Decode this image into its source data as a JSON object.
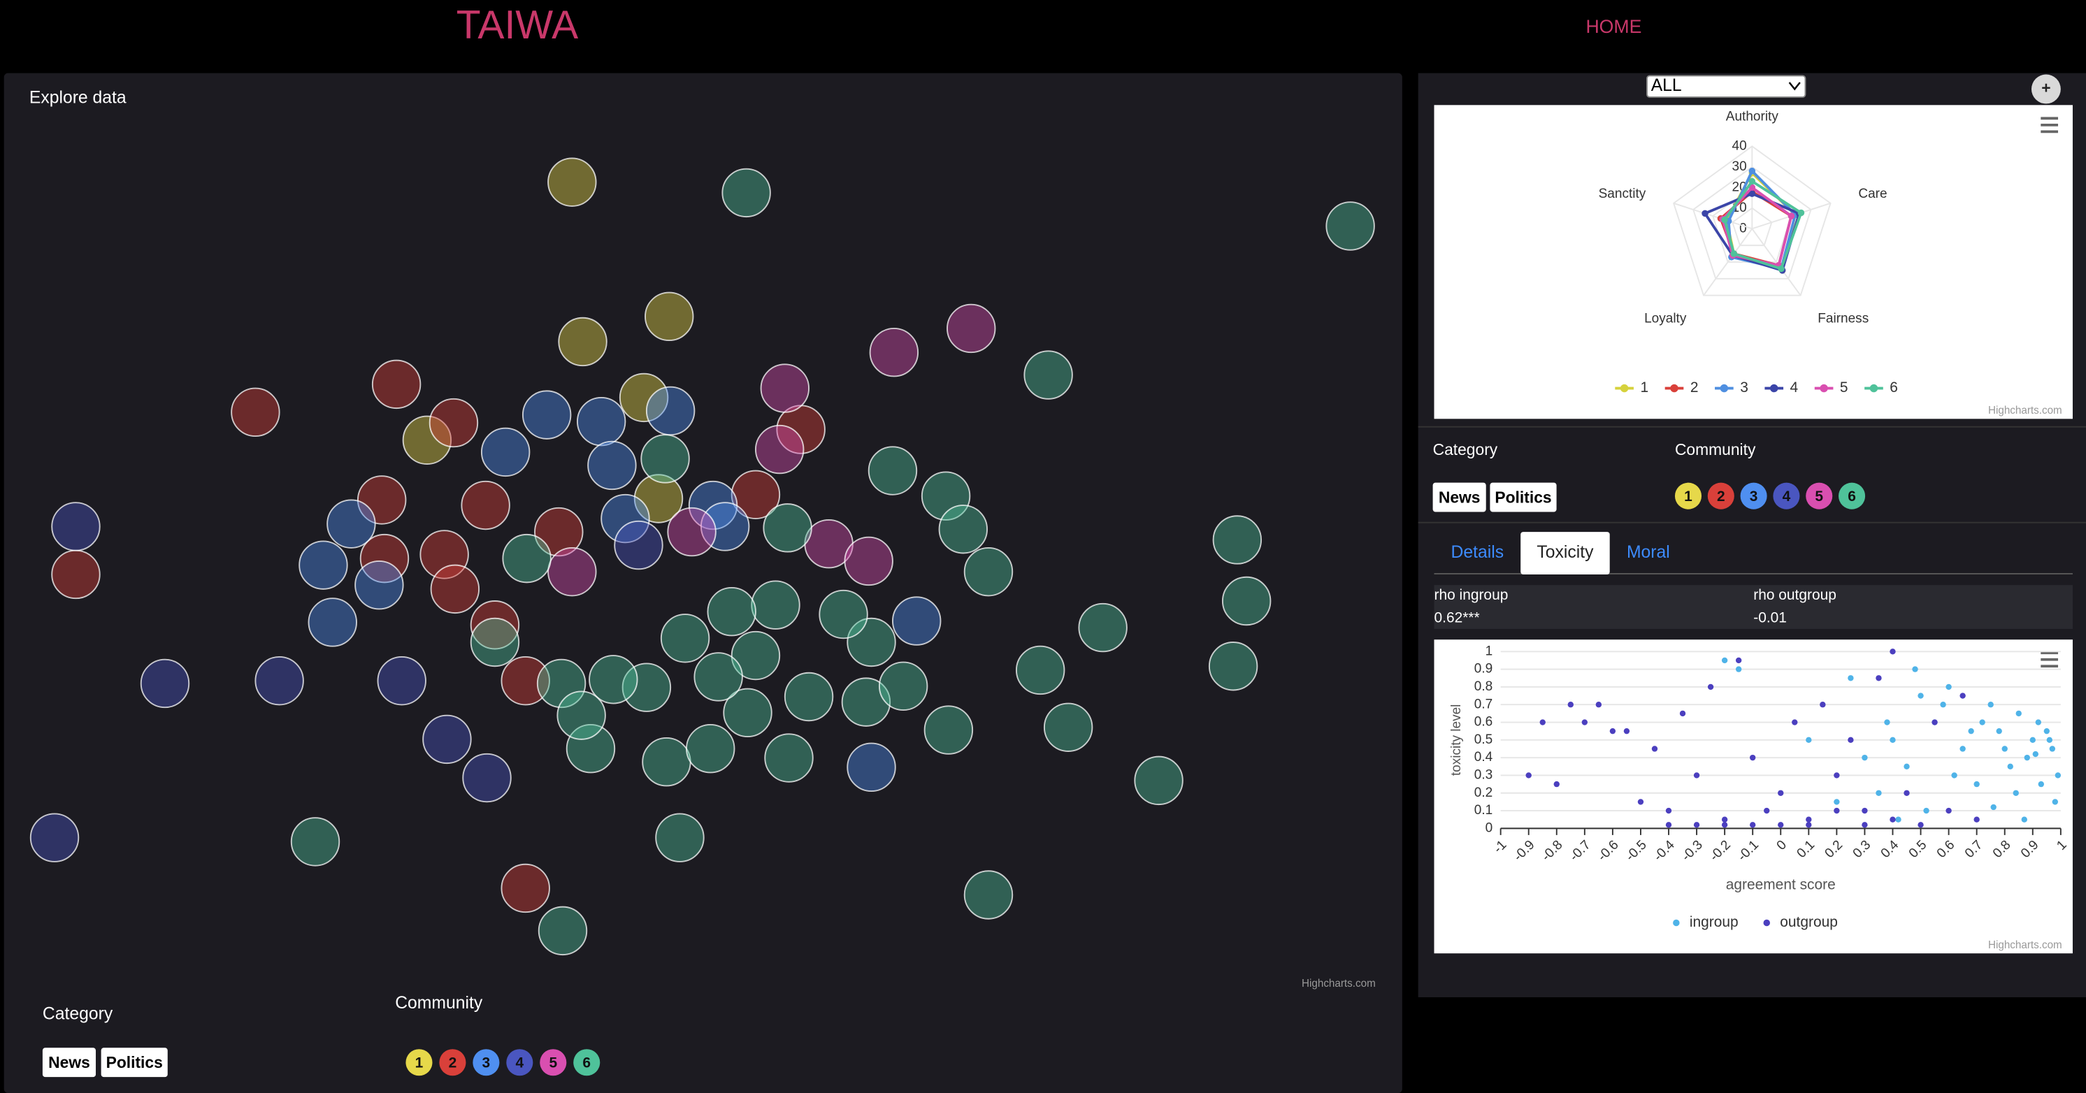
{
  "header": {
    "title": "TAIWA",
    "nav": "HOME"
  },
  "explore": {
    "title": "Explore data",
    "credit": "Highcharts.com",
    "category_label": "Category",
    "categories": [
      "News",
      "Politics"
    ],
    "community_label": "Community"
  },
  "sidebar": {
    "select": "ALL",
    "add": "+",
    "radar_credit": "Highcharts.com",
    "category_label": "Category",
    "categories": [
      "News",
      "Politics"
    ],
    "community_label": "Community",
    "tabs": [
      "Details",
      "Toxicity",
      "Moral"
    ],
    "stats": [
      {
        "label": "rho ingroup",
        "value": "0.62***"
      },
      {
        "label": "rho outgroup",
        "value": "-0.01"
      }
    ],
    "toxicity_credit": "Highcharts.com"
  },
  "chart_data": [
    {
      "type": "scatter",
      "xlim": [
        0,
        1051
      ],
      "ylim": [
        0,
        690
      ],
      "legend": false,
      "series": [
        {
          "name": "1",
          "color": "#e6d84a",
          "x": [
            427,
            500,
            435,
            481,
            318,
            492
          ],
          "values": [
            608,
            507,
            488,
            446,
            414,
            370
          ]
        },
        {
          "name": "2",
          "color": "#d9403a",
          "x": [
            189,
            295,
            338,
            284,
            54,
            286,
            331,
            339,
            392,
            392,
            599,
            565,
            362,
            417,
            369
          ],
          "values": [
            435,
            456,
            427,
            369,
            313,
            325,
            328,
            302,
            233,
            77,
            422,
            373,
            365,
            345,
            275
          ]
        },
        {
          "name": "3",
          "color": "#4f8ff0",
          "x": [
            261,
            240,
            247,
            282,
            408,
            449,
            501,
            377,
            457,
            533,
            542,
            686,
            652,
            467
          ],
          "values": [
            351,
            320,
            277,
            305,
            433,
            428,
            436,
            405,
            395,
            365,
            349,
            278,
            168,
            355
          ]
        },
        {
          "name": "4",
          "color": "#4a56c0",
          "x": [
            54,
            121,
            207,
            299,
            333,
            363,
            38,
            477
          ],
          "values": [
            349,
            231,
            233,
            233,
            189,
            160,
            115,
            335
          ]
        },
        {
          "name": "5",
          "color": "#d94fb0",
          "x": [
            669,
            727,
            587,
            583,
            620,
            650,
            427,
            517
          ],
          "values": [
            480,
            498,
            453,
            407,
            336,
            323,
            315,
            345
          ]
        },
        {
          "name": "6",
          "color": "#4fc29a",
          "x": [
            558,
            1012,
            785,
            668,
            708,
            721,
            740,
            927,
            934,
            924,
            826,
            779,
            800,
            868,
            710,
            740,
            420,
            234,
            508,
            590,
            498,
            441,
            531,
            559,
            605,
            648,
            676,
            652,
            631,
            589,
            580,
            565,
            537,
            483,
            458,
            419,
            434,
            393,
            497,
            369,
            547,
            512
          ],
          "values": [
            600,
            575,
            463,
            391,
            372,
            347,
            315,
            339,
            293,
            244,
            273,
            241,
            198,
            158,
            196,
            72,
            45,
            112,
            115,
            175,
            172,
            182,
            182,
            209,
            221,
            217,
            229,
            262,
            283,
            348,
            290,
            252,
            236,
            228,
            234,
            231,
            207,
            325,
            400,
            262,
            285,
            265
          ]
        }
      ]
    },
    {
      "type": "radar",
      "categories": [
        "Authority",
        "Care",
        "Fairness",
        "Loyalty",
        "Sanctity"
      ],
      "ylim": [
        0,
        40
      ],
      "yticks": [
        0,
        10,
        20,
        30,
        40
      ],
      "legend": true,
      "series": [
        {
          "name": "1",
          "color": "#d6d23c",
          "values": [
            27,
            22,
            25,
            15,
            13
          ]
        },
        {
          "name": "2",
          "color": "#d9403a",
          "values": [
            18,
            20,
            22,
            15,
            16
          ]
        },
        {
          "name": "3",
          "color": "#4f8fe0",
          "values": [
            28,
            22,
            24,
            17,
            12
          ]
        },
        {
          "name": "4",
          "color": "#3b45a8",
          "values": [
            17,
            24,
            25,
            16,
            24
          ]
        },
        {
          "name": "5",
          "color": "#d94fb0",
          "values": [
            20,
            20,
            22,
            16,
            15
          ]
        },
        {
          "name": "6",
          "color": "#4fc29a",
          "values": [
            23,
            25,
            24,
            15,
            14
          ]
        }
      ]
    },
    {
      "type": "scatter",
      "xlabel": "agreement score",
      "ylabel": "toxicity level",
      "xlim": [
        -1,
        1
      ],
      "ylim": [
        0,
        1
      ],
      "xticks": [
        -1,
        -0.9,
        -0.8,
        -0.7,
        -0.6,
        -0.5,
        -0.4,
        -0.3,
        -0.2,
        -0.1,
        0,
        0.1,
        0.2,
        0.3,
        0.4,
        0.5,
        0.6,
        0.7,
        0.8,
        0.9,
        1
      ],
      "yticks": [
        0,
        0.1,
        0.2,
        0.3,
        0.4,
        0.5,
        0.6,
        0.7,
        0.8,
        0.9,
        1
      ],
      "grid": true,
      "legend": true,
      "series": [
        {
          "name": "ingroup",
          "color": "#4fb3e8",
          "x": [
            0.95,
            0.97,
            0.92,
            0.9,
            0.88,
            0.99,
            0.85,
            0.82,
            0.78,
            0.75,
            0.7,
            0.65,
            0.6,
            0.55,
            0.5,
            0.45,
            0.4,
            0.35,
            0.3,
            0.25,
            0.98,
            0.93,
            0.87,
            0.8,
            0.72,
            0.62,
            0.52,
            0.42,
            0.96,
            0.91,
            0.84,
            0.76,
            0.68,
            0.58,
            0.48,
            0.38,
            -0.2,
            -0.15,
            0.1,
            0.2
          ],
          "values": [
            0.55,
            0.45,
            0.6,
            0.5,
            0.4,
            0.3,
            0.65,
            0.35,
            0.55,
            0.7,
            0.25,
            0.45,
            0.8,
            0.6,
            0.75,
            0.35,
            0.5,
            0.2,
            0.4,
            0.85,
            0.15,
            0.25,
            0.05,
            0.45,
            0.6,
            0.3,
            0.1,
            0.05,
            0.5,
            0.42,
            0.2,
            0.12,
            0.55,
            0.7,
            0.9,
            0.6,
            0.95,
            0.9,
            0.5,
            0.15
          ]
        },
        {
          "name": "outgroup",
          "color": "#4b3fbf",
          "x": [
            -0.9,
            -0.85,
            -0.8,
            -0.75,
            -0.7,
            -0.65,
            -0.55,
            -0.5,
            -0.45,
            -0.4,
            -0.35,
            -0.3,
            -0.25,
            -0.2,
            -0.15,
            -0.1,
            -0.05,
            0,
            0.05,
            0.1,
            0.15,
            0.2,
            0.25,
            0.3,
            0.35,
            0.4,
            0.45,
            0.5,
            0.55,
            0.6,
            0.65,
            0.7,
            -0.4,
            -0.3,
            -0.1,
            0,
            0.1,
            0.2,
            0.3,
            0.4,
            -0.6,
            -0.2
          ],
          "values": [
            0.3,
            0.6,
            0.25,
            0.7,
            0.6,
            0.7,
            0.55,
            0.15,
            0.45,
            0.02,
            0.65,
            0.3,
            0.8,
            0.05,
            0.95,
            0.4,
            0.1,
            0.02,
            0.6,
            0.05,
            0.7,
            0.3,
            0.5,
            0.1,
            0.85,
            1,
            0.2,
            0.02,
            0.6,
            0.1,
            0.75,
            0.05,
            0.1,
            0.02,
            0.02,
            0.2,
            0.02,
            0.1,
            0.02,
            0.05,
            0.55,
            0.02
          ]
        }
      ]
    }
  ]
}
